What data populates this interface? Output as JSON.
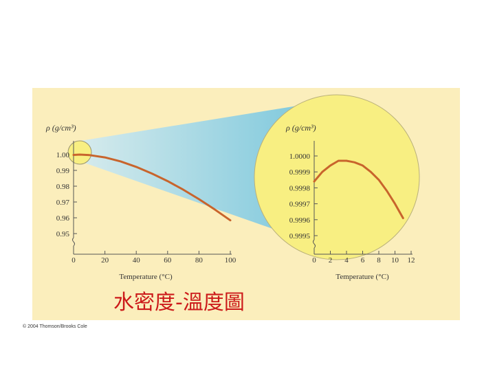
{
  "colors": {
    "panel": "#fbeebc",
    "beam": "#74c6e3",
    "lens": "#f8ef82",
    "curve": "#c8642c",
    "axis": "#555555",
    "annotation": "#cc1a1a"
  },
  "annotation": "水密度-溫度圖",
  "copyright": "© 2004 Thomson/Brooks Cole",
  "chart_data": [
    {
      "type": "line",
      "ylabel": "ρ (g/cm³)",
      "xlabel": "Temperature (°C)",
      "xlim": [
        0,
        100
      ],
      "ylim": [
        0.95,
        1.0
      ],
      "x_ticks": [
        "0",
        "20",
        "40",
        "60",
        "80",
        "100"
      ],
      "y_ticks": [
        "1.00",
        "0.99",
        "0.98",
        "0.97",
        "0.96",
        "0.95"
      ],
      "y_axis_break": true,
      "x": [
        0,
        4,
        10,
        20,
        30,
        40,
        50,
        60,
        70,
        80,
        90,
        100
      ],
      "y": [
        0.9998,
        1.0,
        0.9997,
        0.9982,
        0.9957,
        0.9922,
        0.988,
        0.9832,
        0.9778,
        0.9718,
        0.9653,
        0.9584
      ]
    },
    {
      "type": "line",
      "ylabel": "ρ (g/cm³)",
      "xlabel": "Temperature (°C)",
      "xlim": [
        0,
        12
      ],
      "ylim": [
        0.9995,
        1.0
      ],
      "x_ticks": [
        "0",
        "2",
        "4",
        "6",
        "8",
        "10",
        "12"
      ],
      "y_ticks": [
        "1.0000",
        "0.9999",
        "0.9998",
        "0.9997",
        "0.9996",
        "0.9995"
      ],
      "y_axis_break": true,
      "x": [
        0,
        1,
        2,
        3,
        4,
        5,
        6,
        7,
        8,
        9,
        10,
        11
      ],
      "y": [
        0.99984,
        0.9999,
        0.99994,
        0.99997,
        0.99997,
        0.99996,
        0.99994,
        0.9999,
        0.99985,
        0.99978,
        0.9997,
        0.99961
      ]
    }
  ]
}
